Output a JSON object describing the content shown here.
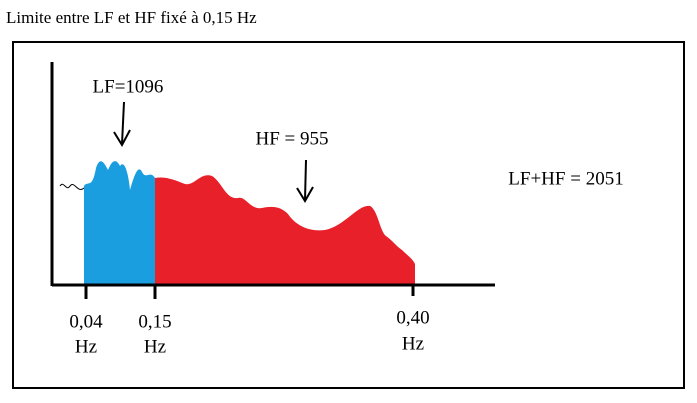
{
  "title": "Limite entre LF et HF fixé à 0,15 Hz",
  "frequency_labels": [
    {
      "value": "0,04",
      "unit": "Hz"
    },
    {
      "value": "0,15",
      "unit": "Hz"
    },
    {
      "value": "0,40",
      "unit": "Hz"
    }
  ],
  "annotations": {
    "lf": "LF=1096",
    "hf": "HF = 955",
    "total": "LF+HF = 2051"
  }
}
